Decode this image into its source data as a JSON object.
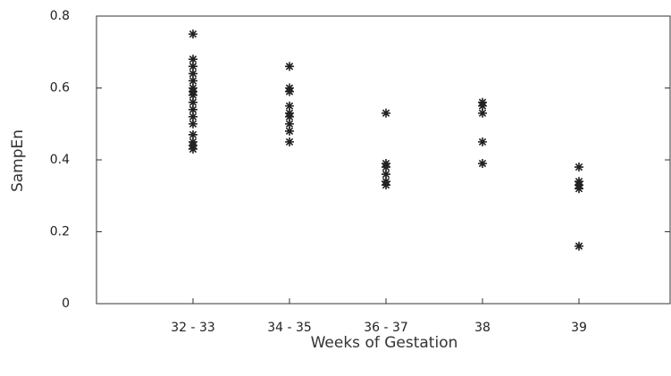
{
  "chart_data": {
    "type": "strip",
    "x_label": "Weeks of Gestation",
    "y_label": "SampEn",
    "categories": [
      "32 - 33",
      "34 - 35",
      "36 - 37",
      "38",
      "39"
    ],
    "values": [
      [
        0.75,
        0.68,
        0.66,
        0.64,
        0.62,
        0.6,
        0.59,
        0.58,
        0.56,
        0.54,
        0.52,
        0.5,
        0.47,
        0.45,
        0.44,
        0.43
      ],
      [
        0.66,
        0.6,
        0.59,
        0.55,
        0.53,
        0.52,
        0.5,
        0.48,
        0.45
      ],
      [
        0.53,
        0.39,
        0.38,
        0.36,
        0.34,
        0.33
      ],
      [
        0.56,
        0.55,
        0.53,
        0.45,
        0.39
      ],
      [
        0.38,
        0.34,
        0.33,
        0.32,
        0.16
      ]
    ],
    "color": "#222222",
    "ylim": [
      0,
      0.8
    ],
    "yticks": [
      0,
      0.2,
      0.4,
      0.6,
      0.8
    ]
  }
}
